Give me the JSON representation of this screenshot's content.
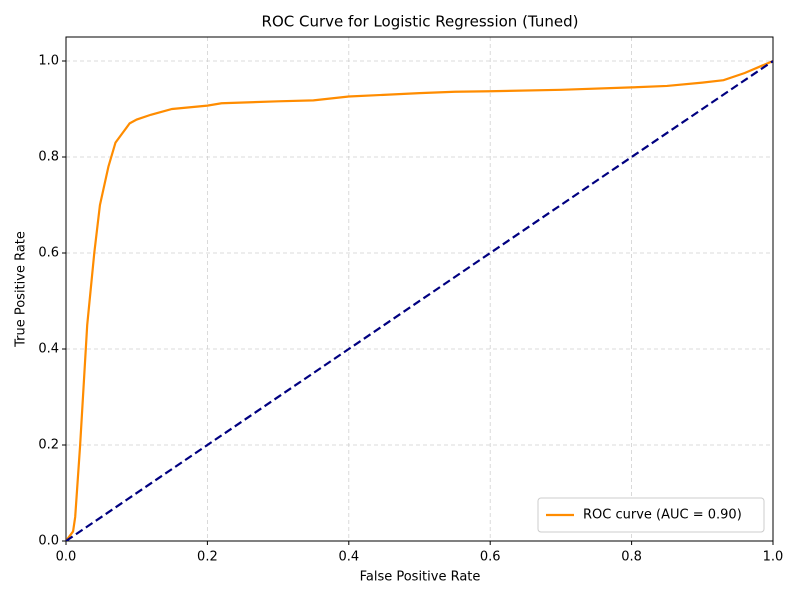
{
  "chart_data": {
    "type": "line",
    "title": "ROC Curve for Logistic Regression (Tuned)",
    "x_label": "False Positive Rate",
    "y_label": "True Positive Rate",
    "xlim": [
      0,
      1
    ],
    "ylim": [
      0,
      1.05
    ],
    "xticks": [
      {
        "value": 0,
        "label": "0.0"
      },
      0.2,
      0.4,
      0.6,
      0.8,
      {
        "value": 1,
        "label": "1.0"
      }
    ],
    "yticks": [
      {
        "value": 0,
        "label": "0.0"
      },
      0.2,
      0.4,
      0.6,
      0.8,
      {
        "value": 1,
        "label": "1.0"
      }
    ],
    "grid": true,
    "legend": "lower right",
    "series": [
      {
        "name": "ROC curve (AUC = 0.90)",
        "color": "#ff8c00",
        "dash": false,
        "x": [
          0,
          0.01,
          0.013,
          0.02,
          0.03,
          0.04,
          0.048,
          0.06,
          0.07,
          0.08,
          0.09,
          0.1,
          0.12,
          0.15,
          0.2,
          0.22,
          0.3,
          0.35,
          0.4,
          0.5,
          0.55,
          0.6,
          0.7,
          0.8,
          0.85,
          0.9,
          0.93,
          0.96,
          1
        ],
        "values": [
          0,
          0.02,
          0.05,
          0.2,
          0.45,
          0.6,
          0.7,
          0.78,
          0.83,
          0.85,
          0.87,
          0.878,
          0.888,
          0.9,
          0.907,
          0.912,
          0.916,
          0.918,
          0.926,
          0.933,
          0.936,
          0.937,
          0.94,
          0.945,
          0.948,
          0.955,
          0.96,
          0.975,
          1
        ]
      },
      {
        "color": "#000080",
        "dash": true,
        "x": [
          0,
          1
        ],
        "values": [
          0,
          1
        ]
      }
    ]
  }
}
